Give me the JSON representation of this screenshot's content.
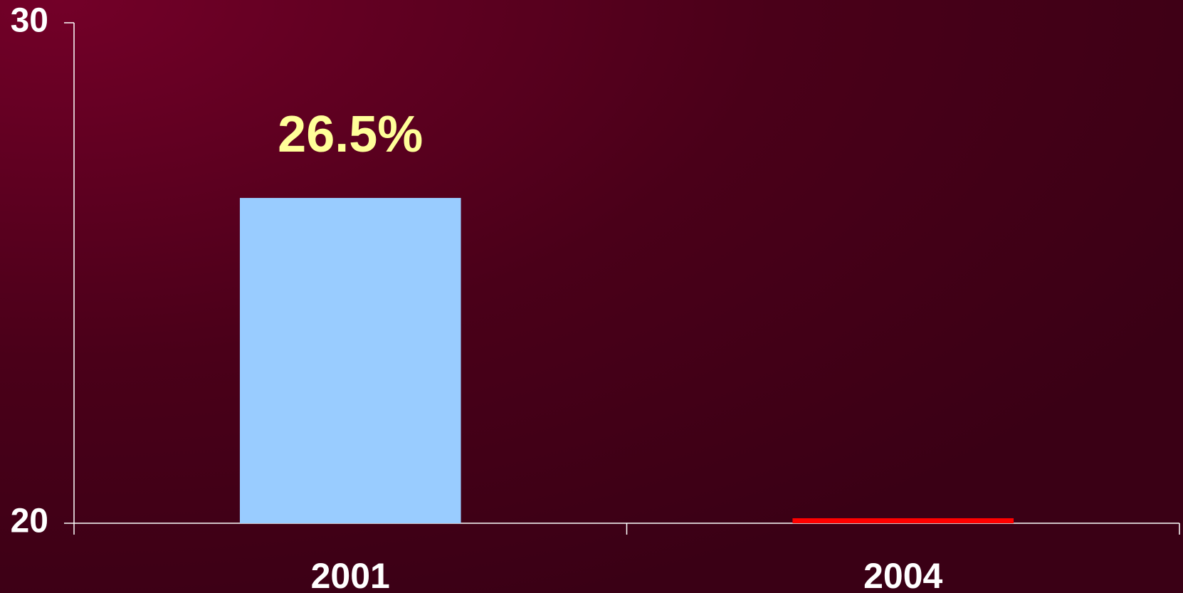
{
  "chart_data": {
    "type": "bar",
    "categories": [
      "2001",
      "2004"
    ],
    "values": [
      26.5,
      20.1
    ],
    "value_labels": [
      "26.5%",
      null
    ],
    "colors": [
      "#99ccff",
      "#ff0000"
    ],
    "ylim": [
      20,
      30
    ],
    "yticks": [
      20,
      30
    ],
    "grid": false
  }
}
